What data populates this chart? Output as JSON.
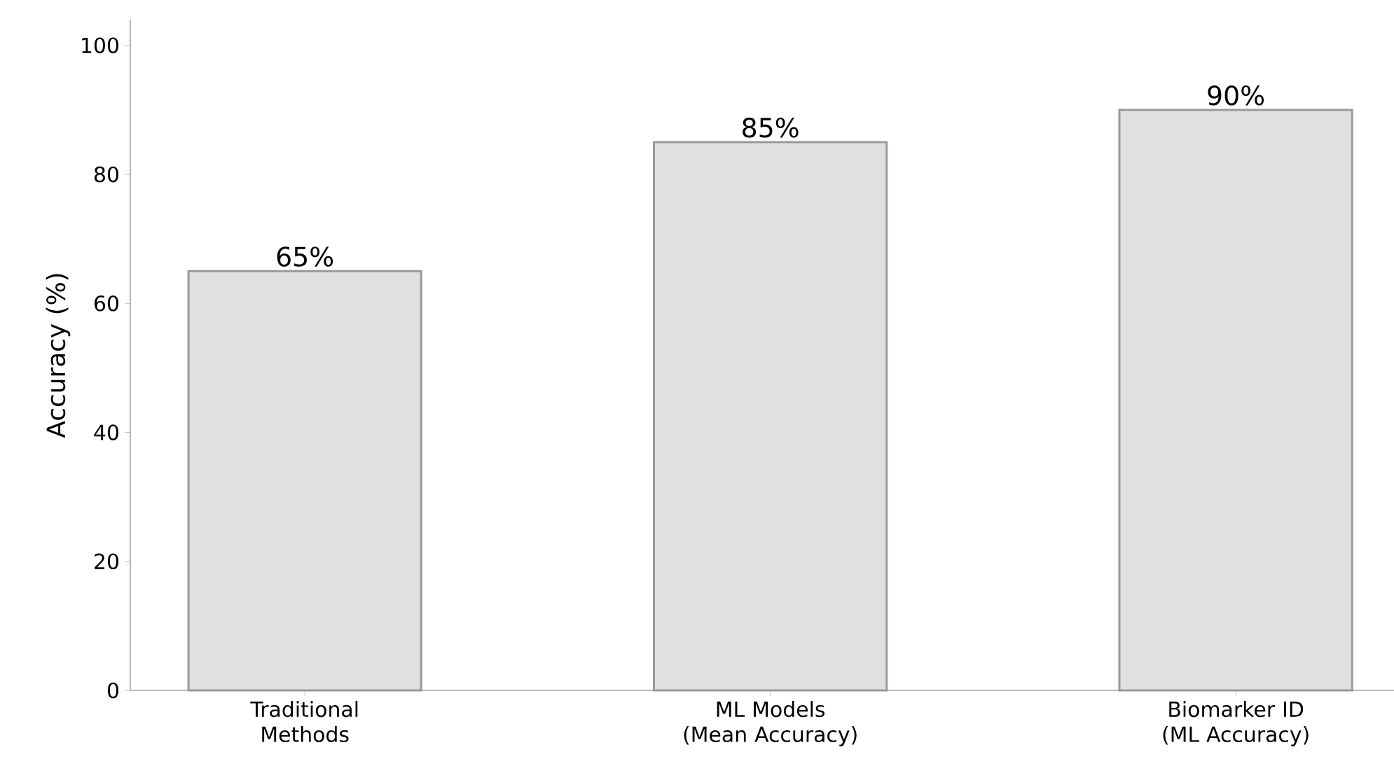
{
  "chart_data": {
    "type": "bar",
    "ylabel": "Accuracy (%)",
    "categories": [
      "Traditional Methods",
      "ML Models (Mean Accuracy)",
      "Biomarker ID (ML Accuracy)"
    ],
    "values": [
      65,
      85,
      90
    ],
    "value_labels": [
      "65%",
      "85%",
      "90%"
    ],
    "color": "#e0e0e0",
    "ylim": [
      0,
      104
    ],
    "yticks": [
      0,
      20,
      40,
      60,
      80,
      100
    ],
    "grid": false
  }
}
